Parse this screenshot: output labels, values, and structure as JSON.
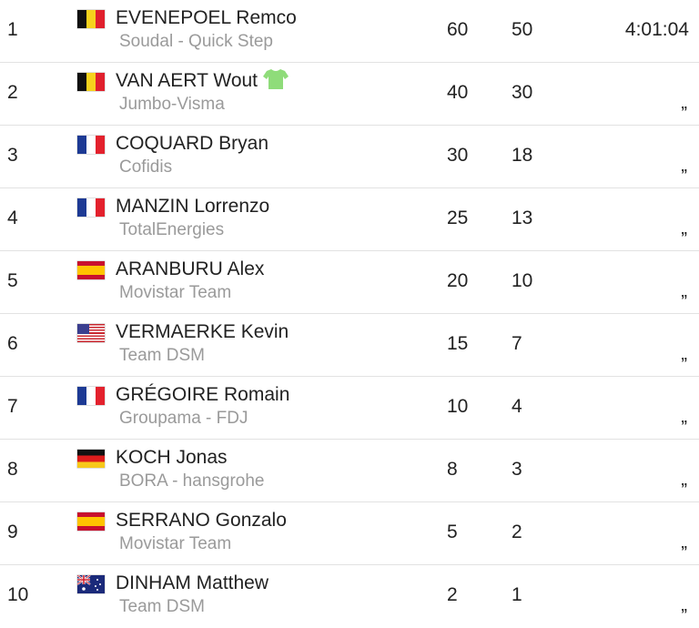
{
  "riders": [
    {
      "rank": "1",
      "flag": "be",
      "name": "EVENEPOEL Remco",
      "team": "Soudal - Quick Step",
      "points": "60",
      "bonus": "50",
      "time": "4:01:04",
      "jersey": false
    },
    {
      "rank": "2",
      "flag": "be",
      "name": "VAN AERT Wout",
      "team": "Jumbo-Visma",
      "points": "40",
      "bonus": "30",
      "time": "„",
      "jersey": true
    },
    {
      "rank": "3",
      "flag": "fr",
      "name": "COQUARD Bryan",
      "team": "Cofidis",
      "points": "30",
      "bonus": "18",
      "time": "„",
      "jersey": false
    },
    {
      "rank": "4",
      "flag": "fr",
      "name": "MANZIN Lorrenzo",
      "team": "TotalEnergies",
      "points": "25",
      "bonus": "13",
      "time": "„",
      "jersey": false
    },
    {
      "rank": "5",
      "flag": "es",
      "name": "ARANBURU Alex",
      "team": "Movistar Team",
      "points": "20",
      "bonus": "10",
      "time": "„",
      "jersey": false
    },
    {
      "rank": "6",
      "flag": "us",
      "name": "VERMAERKE Kevin",
      "team": "Team DSM",
      "points": "15",
      "bonus": "7",
      "time": "„",
      "jersey": false
    },
    {
      "rank": "7",
      "flag": "fr",
      "name": "GRÉGOIRE Romain",
      "team": "Groupama - FDJ",
      "points": "10",
      "bonus": "4",
      "time": "„",
      "jersey": false
    },
    {
      "rank": "8",
      "flag": "de",
      "name": "KOCH Jonas",
      "team": "BORA - hansgrohe",
      "points": "8",
      "bonus": "3",
      "time": "„",
      "jersey": false
    },
    {
      "rank": "9",
      "flag": "es",
      "name": "SERRANO Gonzalo",
      "team": "Movistar Team",
      "points": "5",
      "bonus": "2",
      "time": "„",
      "jersey": false
    },
    {
      "rank": "10",
      "flag": "au",
      "name": "DINHAM Matthew",
      "team": "Team DSM",
      "points": "2",
      "bonus": "1",
      "time": "„",
      "jersey": false
    }
  ],
  "colors": {
    "jersey": "#8fdc7a",
    "team_text": "#9a9a9a",
    "divider": "#e2e2e2"
  },
  "icons": {
    "jersey": "green-jersey-icon"
  }
}
